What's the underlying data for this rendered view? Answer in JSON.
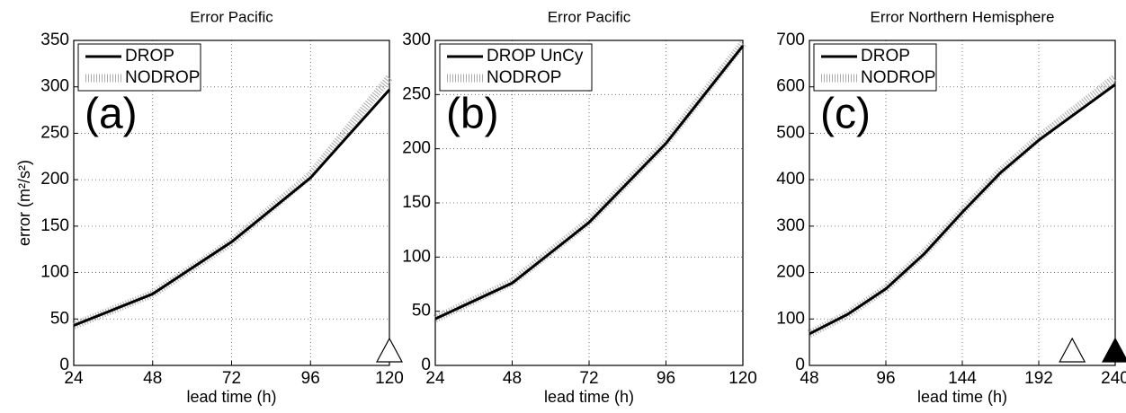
{
  "chart_data": [
    {
      "type": "line",
      "title": "Error Pacific",
      "panel_label": "(a)",
      "ylabel": "error (m²/s²)",
      "xlabel": "lead time (h)",
      "x": [
        24,
        48,
        72,
        96,
        120
      ],
      "xlim": [
        24,
        120
      ],
      "xticks": [
        24,
        48,
        72,
        96,
        120
      ],
      "ylim": [
        0,
        350
      ],
      "yticks": [
        0,
        50,
        100,
        150,
        200,
        250,
        300,
        350
      ],
      "grid": true,
      "legend": "upper left",
      "series": [
        {
          "name": "DROP",
          "color": "#000000",
          "linestyle": "solid",
          "values": [
            43,
            77,
            133,
            202,
            297
          ]
        },
        {
          "name": "NODROP",
          "color": "#aaaaaa",
          "linestyle": "hatched",
          "values": [
            43,
            77,
            133,
            205,
            310
          ]
        }
      ],
      "significance": [
        {
          "x": 120,
          "filled": false
        }
      ]
    },
    {
      "type": "line",
      "title": "Error Pacific",
      "panel_label": "(b)",
      "xlabel": "lead time (h)",
      "x": [
        24,
        48,
        72,
        96,
        120
      ],
      "xlim": [
        24,
        120
      ],
      "xticks": [
        24,
        48,
        72,
        96,
        120
      ],
      "ylim": [
        0,
        300
      ],
      "yticks": [
        0,
        50,
        100,
        150,
        200,
        250,
        300
      ],
      "grid": true,
      "legend": "upper left",
      "series": [
        {
          "name": "DROP UnCy",
          "color": "#000000",
          "linestyle": "solid",
          "values": [
            43,
            76,
            132,
            205,
            295
          ]
        },
        {
          "name": "NODROP",
          "color": "#aaaaaa",
          "linestyle": "hatched",
          "values": [
            43,
            77,
            133,
            206,
            297
          ]
        }
      ],
      "significance": []
    },
    {
      "type": "line",
      "title": "Error Northern Hemisphere",
      "panel_label": "(c)",
      "xlabel": "lead time (h)",
      "x": [
        48,
        72,
        96,
        120,
        144,
        168,
        192,
        216,
        240
      ],
      "xlim": [
        48,
        240
      ],
      "xticks": [
        48,
        96,
        144,
        192,
        240
      ],
      "ylim": [
        0,
        700
      ],
      "yticks": [
        0,
        100,
        200,
        300,
        400,
        500,
        600,
        700
      ],
      "grid": true,
      "legend": "upper left",
      "series": [
        {
          "name": "DROP",
          "color": "#000000",
          "linestyle": "solid",
          "values": [
            68,
            110,
            165,
            240,
            330,
            415,
            485,
            545,
            605
          ]
        },
        {
          "name": "NODROP",
          "color": "#aaaaaa",
          "linestyle": "hatched",
          "values": [
            68,
            110,
            166,
            242,
            332,
            418,
            490,
            555,
            620
          ]
        }
      ],
      "significance": [
        {
          "x": 213,
          "filled": false
        },
        {
          "x": 240,
          "filled": true
        }
      ]
    }
  ]
}
